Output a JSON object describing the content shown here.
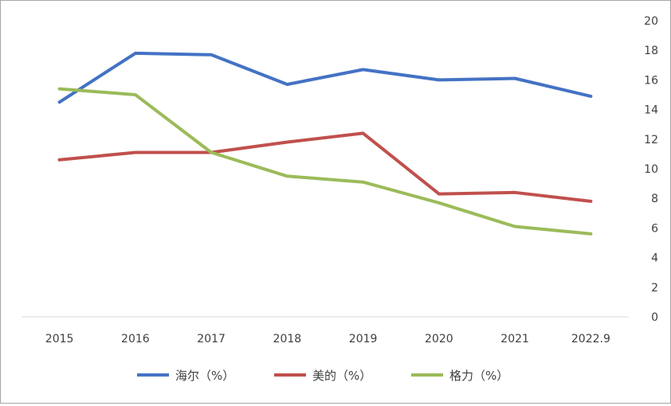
{
  "chart_data": {
    "type": "line",
    "title": "",
    "xlabel": "",
    "ylabel": "",
    "categories": [
      "2015",
      "2016",
      "2017",
      "2018",
      "2019",
      "2020",
      "2021",
      "2022.9"
    ],
    "ylim": [
      0,
      20
    ],
    "yticks": [
      "0",
      "2",
      "4",
      "6",
      "8",
      "10",
      "12",
      "14",
      "16",
      "18",
      "20"
    ],
    "y_axis_side": "right",
    "grid": false,
    "legend_position": "bottom",
    "series": [
      {
        "name": "海尔（%）",
        "color": "#4472c4",
        "values": [
          14.5,
          17.8,
          17.7,
          15.7,
          16.7,
          16.0,
          16.1,
          14.9
        ]
      },
      {
        "name": "美的（%）",
        "color": "#c0504d",
        "values": [
          10.6,
          11.1,
          11.1,
          11.8,
          12.4,
          8.3,
          8.4,
          7.8
        ]
      },
      {
        "name": "格力（%）",
        "color": "#9bbb59",
        "values": [
          15.4,
          15.0,
          11.1,
          9.5,
          9.1,
          7.7,
          6.1,
          5.6
        ]
      }
    ]
  }
}
